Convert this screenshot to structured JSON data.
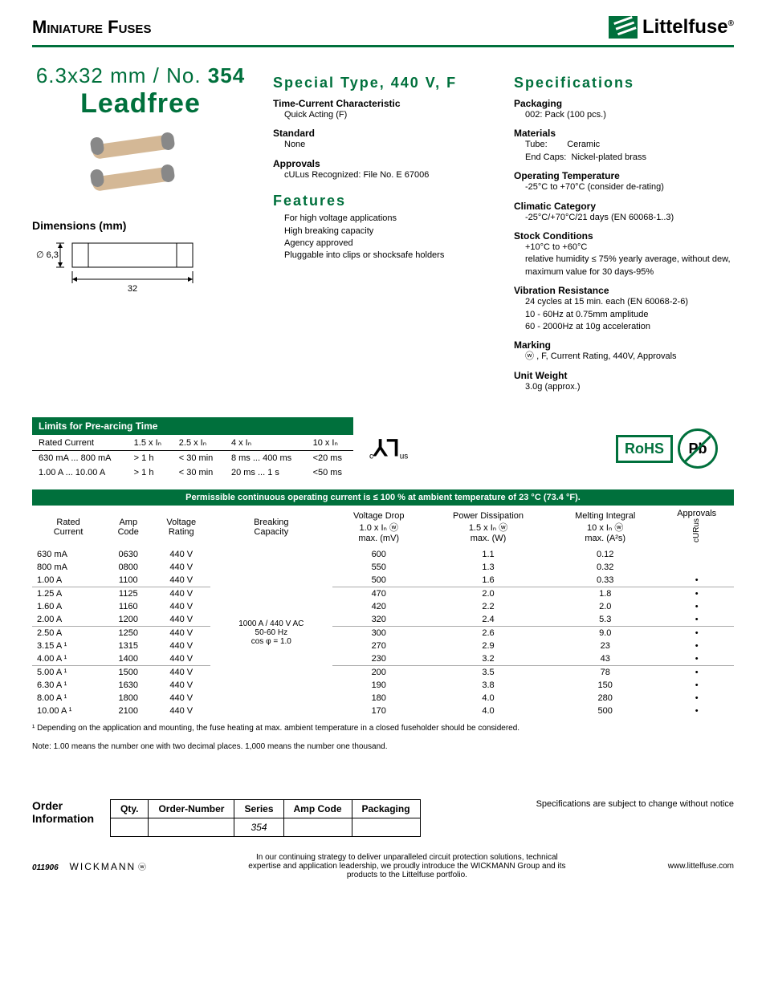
{
  "header": {
    "title": "Miniature Fuses",
    "logo_text": "Littelfuse"
  },
  "product": {
    "size": "6.3x32 mm / No.",
    "number": "354",
    "leadfree": "Leadfree"
  },
  "col2": {
    "title": "Special Type, 440 V, F",
    "tcc_label": "Time-Current Characteristic",
    "tcc_value": "Quick Acting (F)",
    "std_label": "Standard",
    "std_value": "None",
    "appr_label": "Approvals",
    "appr_value": "cULus Recognized: File No. E 67006",
    "features_title": "Features",
    "features": [
      "For high voltage applications",
      "High breaking capacity",
      "Agency approved",
      "Pluggable into clips or shocksafe holders"
    ]
  },
  "dimensions": {
    "title": "Dimensions (mm)",
    "dia": "∅ 6,3",
    "length": "32"
  },
  "specs": {
    "title": "Specifications",
    "packaging_label": "Packaging",
    "packaging_value": "002: Pack (100 pcs.)",
    "materials_label": "Materials",
    "materials_tube_label": "Tube:",
    "materials_tube_value": "Ceramic",
    "materials_cap_label": "End Caps:",
    "materials_cap_value": "Nickel-plated brass",
    "optemp_label": "Operating Temperature",
    "optemp_value": "-25°C to +70°C (consider de-rating)",
    "climate_label": "Climatic Category",
    "climate_value": "-25°C/+70°C/21 days (EN 60068-1..3)",
    "stock_label": "Stock Conditions",
    "stock_value1": "+10°C to +60°C",
    "stock_value2": "relative humidity ≤ 75% yearly average, without dew, maximum value for 30 days-95%",
    "vib_label": "Vibration Resistance",
    "vib_value1": "24 cycles at 15 min. each (EN 60068-2-6)",
    "vib_value2": "10 - 60Hz at 0.75mm amplitude",
    "vib_value3": "60 - 2000Hz at 10g acceleration",
    "marking_label": "Marking",
    "marking_value": ", F, Current Rating, 440V, Approvals",
    "weight_label": "Unit Weight",
    "weight_value": "3.0g (approx.)"
  },
  "prearc": {
    "title": "Limits for Pre-arcing Time",
    "hdr": [
      "Rated Current",
      "1.5 x Iₙ",
      "2.5 x Iₙ",
      "4 x Iₙ",
      "10 x Iₙ"
    ],
    "rows": [
      [
        "630 mA ... 800 mA",
        "> 1 h",
        "< 30 min",
        "8 ms ... 400 ms",
        "<20 ms"
      ],
      [
        "1.00 A ... 10.00 A",
        "> 1 h",
        "< 30 min",
        "20 ms ... 1 s",
        "<50 ms"
      ]
    ]
  },
  "main_table": {
    "hdr_banner": "Permissible continuous operating current is ≤ 100 % at ambient temperature of 23 °C (73.4 °F).",
    "cols": [
      "Rated Current",
      "Amp Code",
      "Voltage Rating",
      "Breaking Capacity",
      "Voltage Drop 1.0 x Iₙ ⓦ max. (mV)",
      "Power Dissipation 1.5 x Iₙ ⓦ max. (W)",
      "Melting Integral 10 x Iₙ ⓦ max. (A²s)",
      "Approvals"
    ],
    "approval_label": "cURus",
    "breaking_capacity": "1000 A / 440 V AC 50-60 Hz cos φ = 1.0",
    "rows": [
      {
        "rc": "630 mA",
        "amp": "0630",
        "vr": "440 V",
        "vd": "600",
        "pd": "1.1",
        "mi": "0.12",
        "ap": ""
      },
      {
        "rc": "800 mA",
        "amp": "0800",
        "vr": "440 V",
        "vd": "550",
        "pd": "1.3",
        "mi": "0.32",
        "ap": ""
      },
      {
        "rc": "1.00 A",
        "amp": "1100",
        "vr": "440 V",
        "vd": "500",
        "pd": "1.6",
        "mi": "0.33",
        "ap": "•"
      },
      {
        "rc": "1.25 A",
        "amp": "1125",
        "vr": "440 V",
        "vd": "470",
        "pd": "2.0",
        "mi": "1.8",
        "ap": "•"
      },
      {
        "rc": "1.60 A",
        "amp": "1160",
        "vr": "440 V",
        "vd": "420",
        "pd": "2.2",
        "mi": "2.0",
        "ap": "•"
      },
      {
        "rc": "2.00 A",
        "amp": "1200",
        "vr": "440 V",
        "vd": "320",
        "pd": "2.4",
        "mi": "5.3",
        "ap": "•"
      },
      {
        "rc": "2.50 A",
        "amp": "1250",
        "vr": "440 V",
        "vd": "300",
        "pd": "2.6",
        "mi": "9.0",
        "ap": "•"
      },
      {
        "rc": "3.15 A ¹",
        "amp": "1315",
        "vr": "440 V",
        "vd": "270",
        "pd": "2.9",
        "mi": "23",
        "ap": "•"
      },
      {
        "rc": "4.00 A ¹",
        "amp": "1400",
        "vr": "440 V",
        "vd": "230",
        "pd": "3.2",
        "mi": "43",
        "ap": "•"
      },
      {
        "rc": "5.00 A ¹",
        "amp": "1500",
        "vr": "440 V",
        "vd": "200",
        "pd": "3.5",
        "mi": "78",
        "ap": "•"
      },
      {
        "rc": "6.30 A ¹",
        "amp": "1630",
        "vr": "440 V",
        "vd": "190",
        "pd": "3.8",
        "mi": "150",
        "ap": "•"
      },
      {
        "rc": "8.00 A ¹",
        "amp": "1800",
        "vr": "440 V",
        "vd": "180",
        "pd": "4.0",
        "mi": "280",
        "ap": "•"
      },
      {
        "rc": "10.00 A ¹",
        "amp": "2100",
        "vr": "440 V",
        "vd": "170",
        "pd": "4.0",
        "mi": "500",
        "ap": "•"
      }
    ]
  },
  "footnote": "¹ Depending on the application and mounting, the fuse heating at max. ambient temperature in a closed fuseholder should be considered.",
  "note": "Note: 1.00 means the number one with two decimal places. 1,000 means the number one thousand.",
  "order": {
    "label": "Order Information",
    "hdrs": [
      "Qty.",
      "Order-Number",
      "Series",
      "Amp Code",
      "Packaging"
    ],
    "series": "354"
  },
  "disclaimer": "Specifications are subject to change without notice",
  "footer": {
    "code": "011906",
    "wickmann": "WICKMANN",
    "center": "In our continuing strategy to deliver unparalleled circuit protection solutions, technical expertise and application leadership, we proudly introduce the WICKMANN Group and its products to the Littelfuse portfolio.",
    "url": "www.littelfuse.com"
  },
  "cert": {
    "ul_prefix": "c",
    "ul_suffix": "us",
    "rohs": "RoHS",
    "pb": "Pb"
  }
}
